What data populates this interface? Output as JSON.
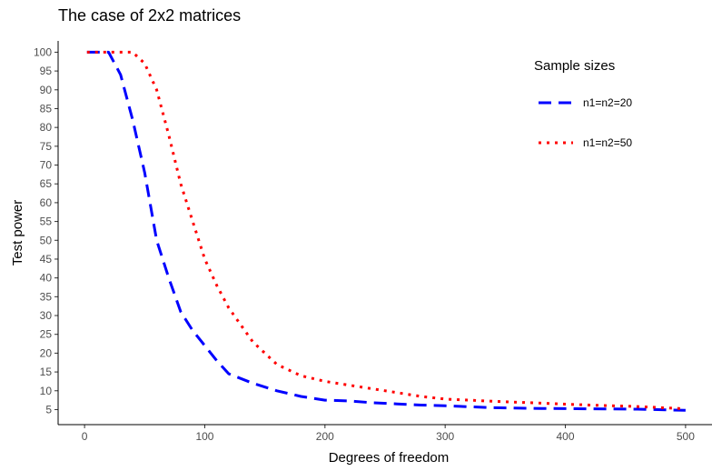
{
  "chart_data": {
    "type": "line",
    "title": "The case of 2x2 matrices",
    "xlabel": "Degrees of freedom",
    "ylabel": "Test power",
    "xlim": [
      -22,
      522
    ],
    "ylim": [
      1,
      103
    ],
    "xticks": [
      0,
      100,
      200,
      300,
      400,
      500
    ],
    "yticks": [
      5,
      10,
      15,
      20,
      25,
      30,
      35,
      40,
      45,
      50,
      55,
      60,
      65,
      70,
      75,
      80,
      85,
      90,
      95,
      100
    ],
    "grid": false,
    "legend": {
      "title": "Sample sizes",
      "position": "top-right"
    },
    "series": [
      {
        "name": "n1=n2=20",
        "color": "#0000ff",
        "linestyle": "dashed",
        "x": [
          2,
          20,
          30,
          40,
          50,
          60,
          70,
          80,
          90,
          100,
          110,
          120,
          140,
          160,
          180,
          200,
          220,
          240,
          260,
          280,
          300,
          340,
          380,
          420,
          460,
          500
        ],
        "y": [
          100,
          100,
          94,
          82,
          68,
          50,
          40,
          31,
          26,
          22,
          18,
          14.5,
          12,
          10,
          8.5,
          7.5,
          7.3,
          6.8,
          6.5,
          6.2,
          6,
          5.5,
          5.3,
          5.2,
          5.1,
          4.8
        ]
      },
      {
        "name": "n1=n2=50",
        "color": "#ff0000",
        "linestyle": "dotted",
        "x": [
          2,
          20,
          30,
          40,
          50,
          60,
          70,
          80,
          90,
          100,
          110,
          120,
          140,
          160,
          180,
          200,
          220,
          240,
          260,
          280,
          300,
          340,
          380,
          420,
          460,
          500
        ],
        "y": [
          100,
          100,
          100,
          100,
          97,
          90,
          78,
          65,
          55,
          45,
          38,
          32,
          23,
          17,
          14,
          12.5,
          11.5,
          10.5,
          9.5,
          8.5,
          7.8,
          7.2,
          6.7,
          6.2,
          5.8,
          5.2
        ]
      }
    ]
  }
}
